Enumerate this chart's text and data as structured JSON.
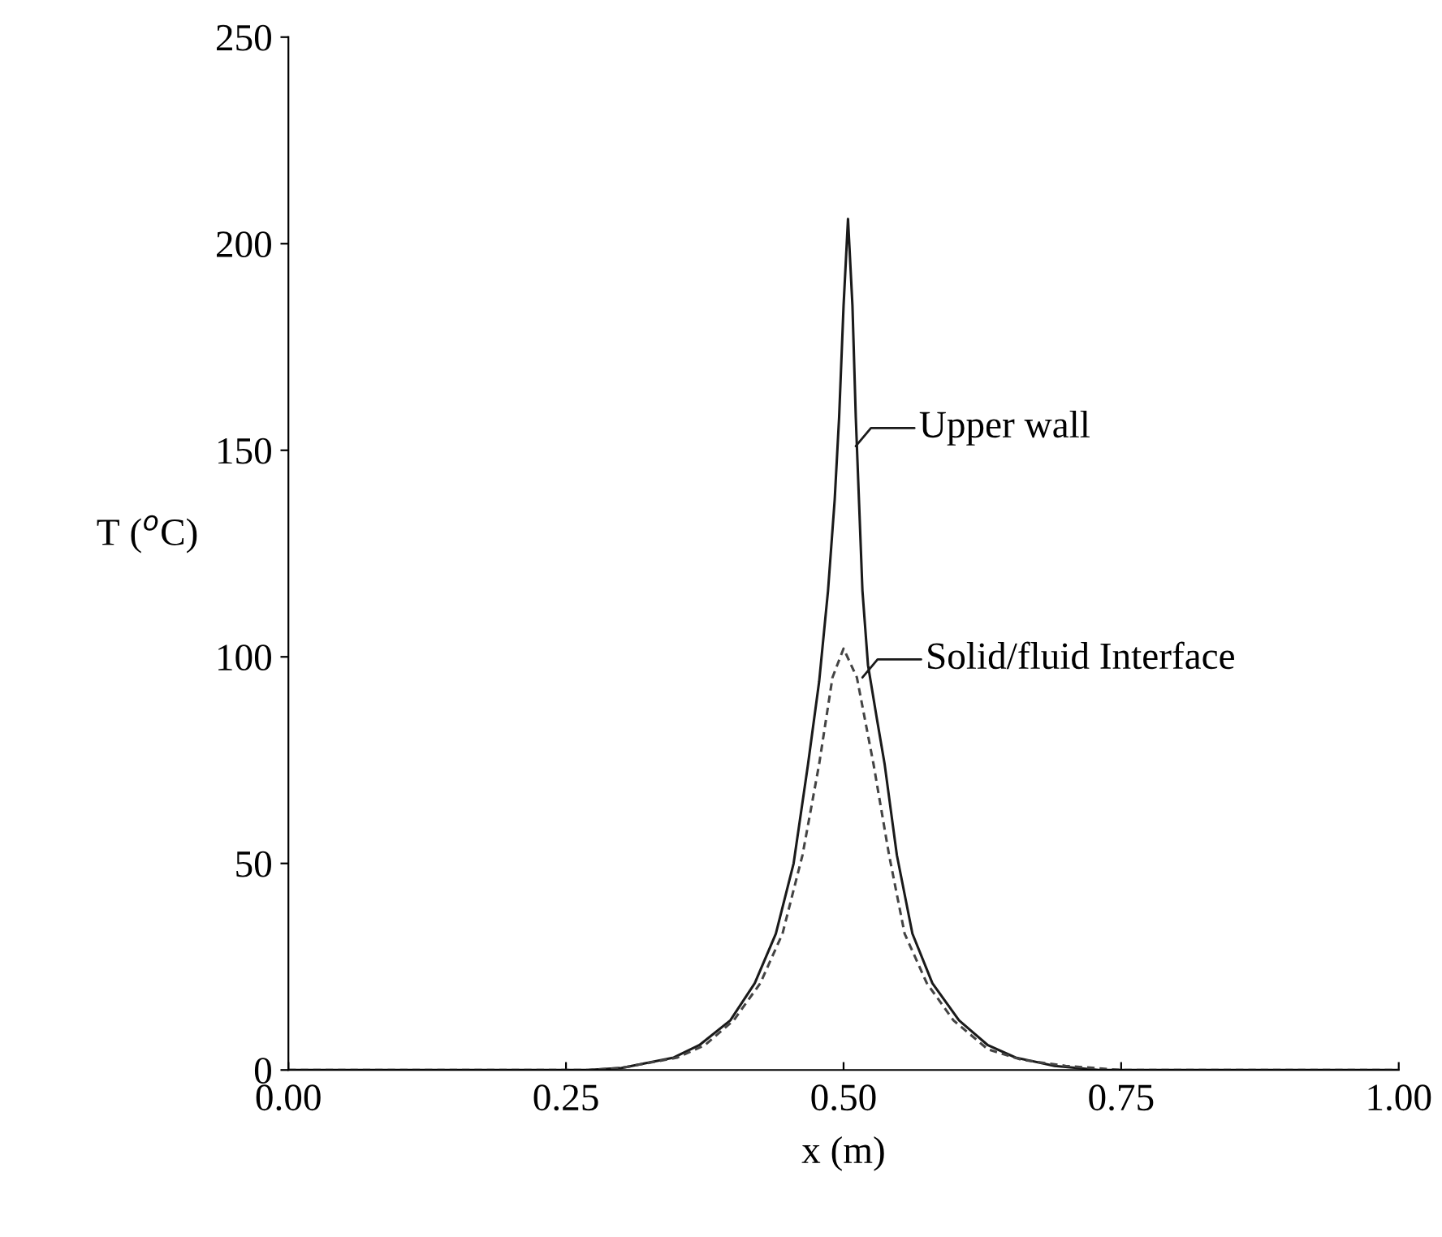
{
  "chart_data": {
    "type": "line",
    "xlabel": "x (m)",
    "ylabel": "T ($^{o}$C)",
    "xlim": [
      0,
      1
    ],
    "xticks": [
      {
        "value": 0,
        "label": "0.00"
      },
      {
        "value": 0.25,
        "label": "0.25"
      },
      {
        "value": 0.5,
        "label": "0.50"
      },
      {
        "value": 0.75,
        "label": "0.75"
      },
      {
        "value": 1,
        "label": "1.00"
      }
    ],
    "ylim": [
      0,
      250
    ],
    "yticks": [
      0,
      50,
      100,
      150,
      200,
      250
    ],
    "grid": false,
    "legend": false,
    "series": [
      {
        "color": "#1a1a1a",
        "line_style": "solid",
        "x": [
          0.0,
          0.2,
          0.27,
          0.3,
          0.347,
          0.37,
          0.398,
          0.42,
          0.439,
          0.455,
          0.468,
          0.478,
          0.486,
          0.492,
          0.496,
          0.5,
          0.504,
          0.508,
          0.511,
          0.514,
          0.517,
          0.522,
          0.53,
          0.537,
          0.548,
          0.562,
          0.58,
          0.604,
          0.63,
          0.655,
          0.69,
          0.73,
          0.8,
          1.0
        ],
        "values": [
          0,
          0,
          0,
          0.5,
          3,
          6,
          12,
          21,
          33,
          50,
          74,
          94,
          116,
          138,
          158,
          185,
          206,
          185,
          158,
          137,
          116,
          98,
          85,
          74,
          52,
          33,
          21,
          12,
          6,
          3,
          1,
          0,
          0,
          0
        ]
      },
      {
        "color": "#444444",
        "line_style": "dashed",
        "x": [
          0.0,
          0.2,
          0.27,
          0.3,
          0.35,
          0.375,
          0.401,
          0.425,
          0.445,
          0.463,
          0.478,
          0.49,
          0.5,
          0.512,
          0.527,
          0.541,
          0.555,
          0.575,
          0.599,
          0.63,
          0.66,
          0.7,
          0.75,
          0.8,
          1.0
        ],
        "values": [
          0,
          0,
          0,
          0.5,
          3,
          6,
          12,
          21,
          33,
          52,
          74,
          95,
          102,
          95,
          74,
          52,
          33,
          21,
          12,
          5,
          2.5,
          1,
          0,
          0,
          0
        ]
      }
    ],
    "annotations": [
      {
        "text": "Upper wall",
        "x": 0.511,
        "y": 151
      },
      {
        "text": "Solid/fluid Interface",
        "x": 0.517,
        "y": 95
      }
    ]
  }
}
